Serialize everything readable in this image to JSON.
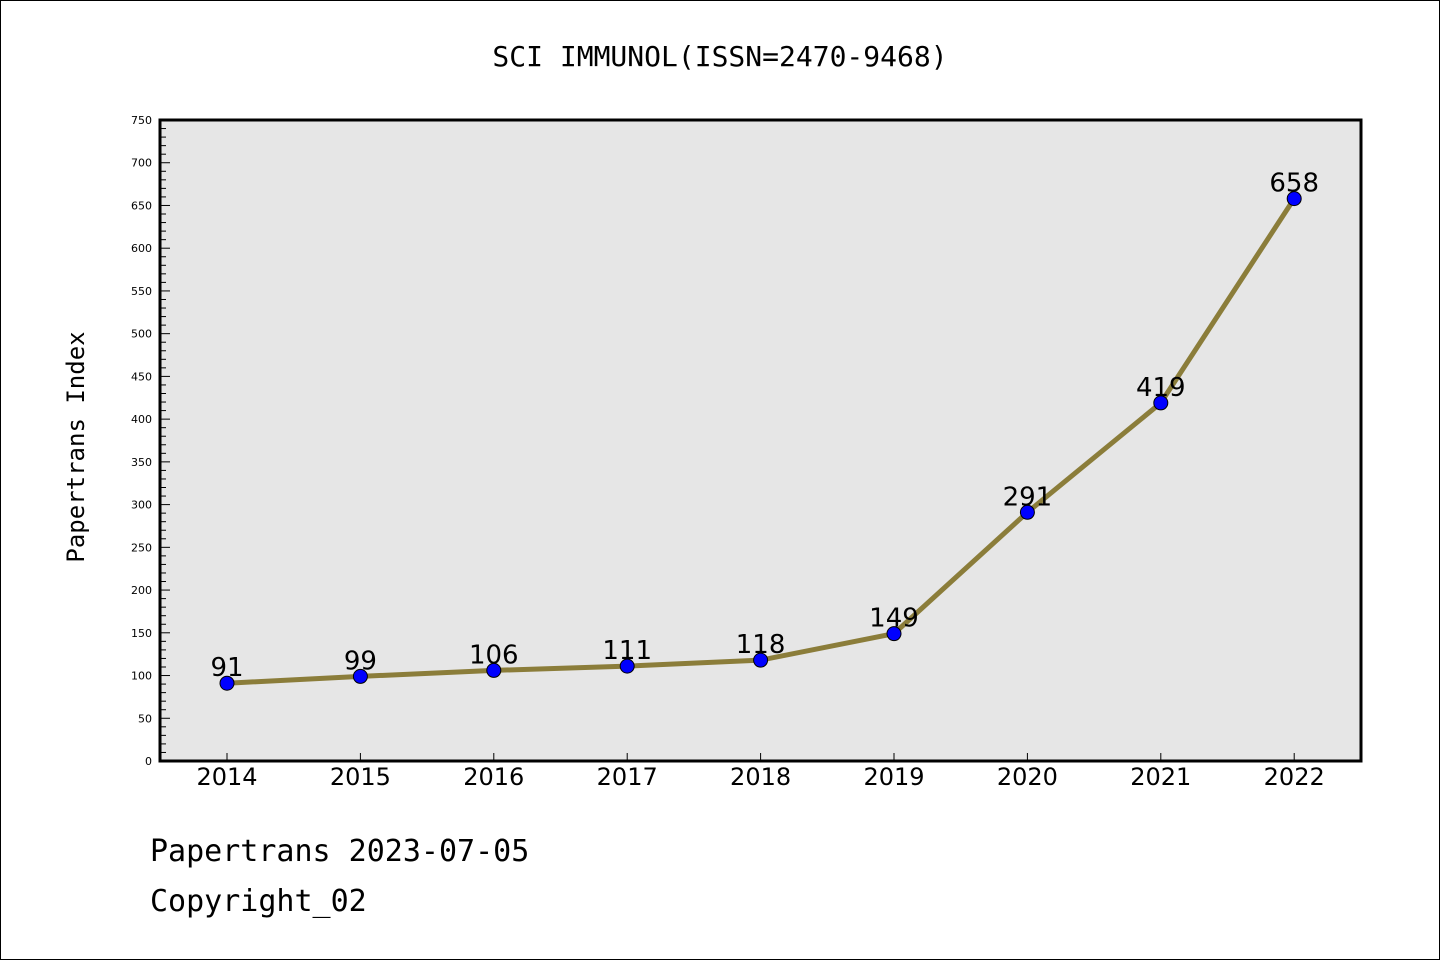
{
  "chart_data": {
    "type": "line",
    "title": "SCI IMMUNOL(ISSN=2470-9468)",
    "xlabel": "",
    "ylabel": "Papertrans Index",
    "categories": [
      "2014",
      "2015",
      "2016",
      "2017",
      "2018",
      "2019",
      "2020",
      "2021",
      "2022"
    ],
    "series": [
      {
        "values": [
          91,
          99,
          106,
          111,
          118,
          149,
          291,
          419,
          658
        ]
      }
    ],
    "data_labels": [
      "91",
      "99",
      "106",
      "111",
      "118",
      "149",
      "291",
      "419",
      "658"
    ],
    "ylim": [
      0,
      750
    ],
    "yticks": [
      0,
      50,
      100,
      150,
      200,
      250,
      300,
      350,
      400,
      450,
      500,
      550,
      600,
      650,
      700,
      750
    ],
    "grid": false,
    "colors": {
      "line": "#8b7d3a",
      "marker": "#0000ff",
      "plot_background": "#e6e6e6"
    }
  },
  "footer": {
    "line1": "Papertrans 2023-07-05",
    "line2": "Copyright_02"
  }
}
